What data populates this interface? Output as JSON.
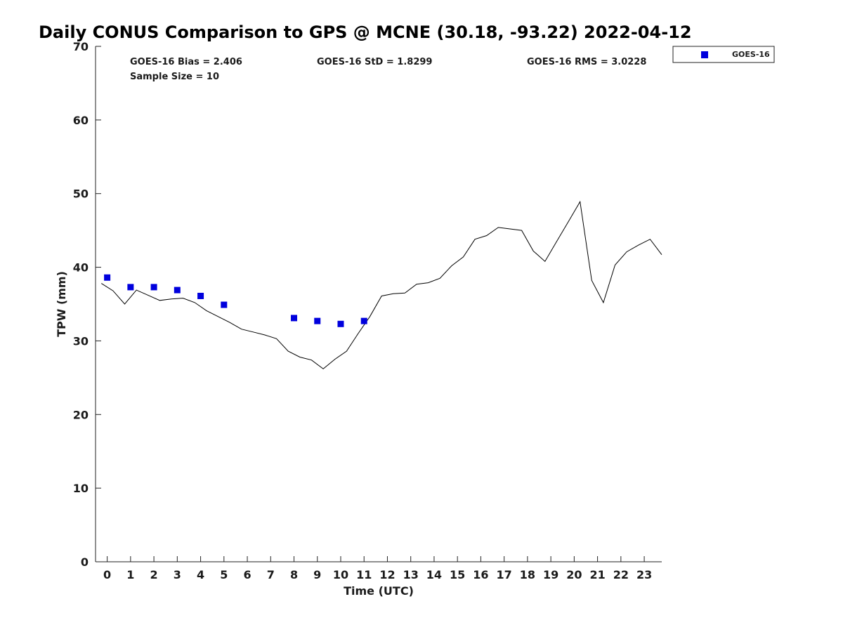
{
  "chart_data": {
    "type": "scatter",
    "title": "Daily CONUS Comparison to GPS @ MCNE (30.18, -93.22) 2022-04-12",
    "xlabel": "Time (UTC)",
    "ylabel": "TPW (mm)",
    "xlim": [
      -0.5,
      23.75
    ],
    "ylim": [
      0,
      70
    ],
    "x_ticks": [
      0,
      1,
      2,
      3,
      4,
      5,
      6,
      7,
      8,
      9,
      10,
      11,
      12,
      13,
      14,
      15,
      16,
      17,
      18,
      19,
      20,
      21,
      22,
      23
    ],
    "x_tick_labels": [
      "0",
      "1",
      "2",
      "3",
      "4",
      "5",
      "6",
      "7",
      "8",
      "9",
      "10",
      "11",
      "12",
      "13",
      "14",
      "15",
      "16",
      "17",
      "18",
      "19",
      "20",
      "21",
      "22",
      "23"
    ],
    "y_ticks": [
      0,
      10,
      20,
      30,
      40,
      50,
      60,
      70
    ],
    "y_tick_labels": [
      "0",
      "10",
      "20",
      "30",
      "40",
      "50",
      "60",
      "70"
    ],
    "grid": false,
    "legend_position": "outside-top-right",
    "stats": {
      "bias": "GOES-16 Bias = 2.406",
      "std": "GOES-16 StD = 1.8299",
      "rms": "GOES-16 RMS = 3.0228",
      "sample": "Sample Size = 10"
    },
    "series": [
      {
        "type": "line",
        "color": "#000000",
        "x": [
          -0.25,
          0.25,
          0.75,
          1.25,
          1.75,
          2.25,
          2.75,
          3.25,
          3.75,
          4.25,
          4.75,
          5.25,
          5.75,
          6.25,
          6.75,
          7.25,
          7.75,
          8.25,
          8.75,
          9.25,
          9.75,
          10.25,
          10.75,
          11.25,
          11.75,
          12.25,
          12.75,
          13.25,
          13.75,
          14.25,
          14.75,
          15.25,
          15.75,
          16.25,
          16.75,
          17.25,
          17.75,
          18.25,
          18.75,
          19.25,
          19.75,
          20.25,
          20.75,
          21.25,
          21.75,
          22.25,
          22.75,
          23.25,
          23.75
        ],
        "y": [
          37.8,
          36.8,
          35.0,
          36.9,
          36.2,
          35.5,
          35.7,
          35.8,
          35.2,
          34.1,
          33.3,
          32.5,
          31.6,
          31.2,
          30.8,
          30.3,
          28.6,
          27.8,
          27.4,
          26.2,
          27.5,
          28.6,
          31.0,
          33.3,
          36.1,
          36.4,
          36.5,
          37.7,
          37.9,
          38.5,
          40.2,
          41.4,
          43.8,
          44.3,
          45.4,
          45.2,
          45.0,
          42.2,
          40.8,
          43.5,
          46.2,
          48.9,
          38.2,
          35.2,
          40.3,
          42.1,
          43.0,
          43.8,
          41.7
        ]
      },
      {
        "name": "GOES-16",
        "type": "scatter",
        "marker": "square",
        "color": "#0000dd",
        "x": [
          0,
          1,
          2,
          3,
          4,
          5,
          8,
          9,
          10,
          11
        ],
        "y": [
          38.6,
          37.3,
          37.3,
          36.9,
          36.1,
          34.9,
          33.1,
          32.7,
          32.3,
          32.7
        ]
      }
    ]
  }
}
